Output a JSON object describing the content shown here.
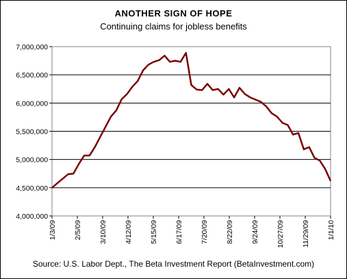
{
  "chart_data": {
    "type": "line",
    "title": "ANOTHER SIGN OF HOPE",
    "subtitle": "Continuing claims for jobless benefits",
    "source": "Source: U.S. Labor Dept., The Beta Investment Report (BetaInvestment.com)",
    "xlabel": "",
    "ylabel": "",
    "ylim": [
      4000000,
      7000000
    ],
    "yticks": [
      4000000,
      4500000,
      5000000,
      5500000,
      6000000,
      6500000,
      7000000
    ],
    "ytick_labels": [
      "4,000,000",
      "4,500,000",
      "5,000,000",
      "5,500,000",
      "6,000,000",
      "6,500,000",
      "7,000,000"
    ],
    "xticks": [
      "1/3/09",
      "2/5/09",
      "3/10/09",
      "4/12/09",
      "5/15/09",
      "6/17/09",
      "7/20/09",
      "8/22/09",
      "9/24/09",
      "10/27/09",
      "11/29/09",
      "1/1/10"
    ],
    "grid": "horizontal",
    "line_color": "#7a0000",
    "series": [
      {
        "values": [
          4500000,
          4580000,
          4660000,
          4740000,
          4750000,
          4920000,
          5070000,
          5070000,
          5220000,
          5400000,
          5580000,
          5760000,
          5870000,
          6070000,
          6160000,
          6290000,
          6390000,
          6580000,
          6680000,
          6730000,
          6760000,
          6840000,
          6730000,
          6750000,
          6730000,
          6890000,
          6320000,
          6240000,
          6230000,
          6340000,
          6230000,
          6250000,
          6150000,
          6250000,
          6100000,
          6270000,
          6160000,
          6100000,
          6060000,
          6020000,
          5940000,
          5820000,
          5760000,
          5650000,
          5610000,
          5440000,
          5470000,
          5180000,
          5220000,
          5030000,
          4980000,
          4830000,
          4620000
        ]
      }
    ]
  }
}
